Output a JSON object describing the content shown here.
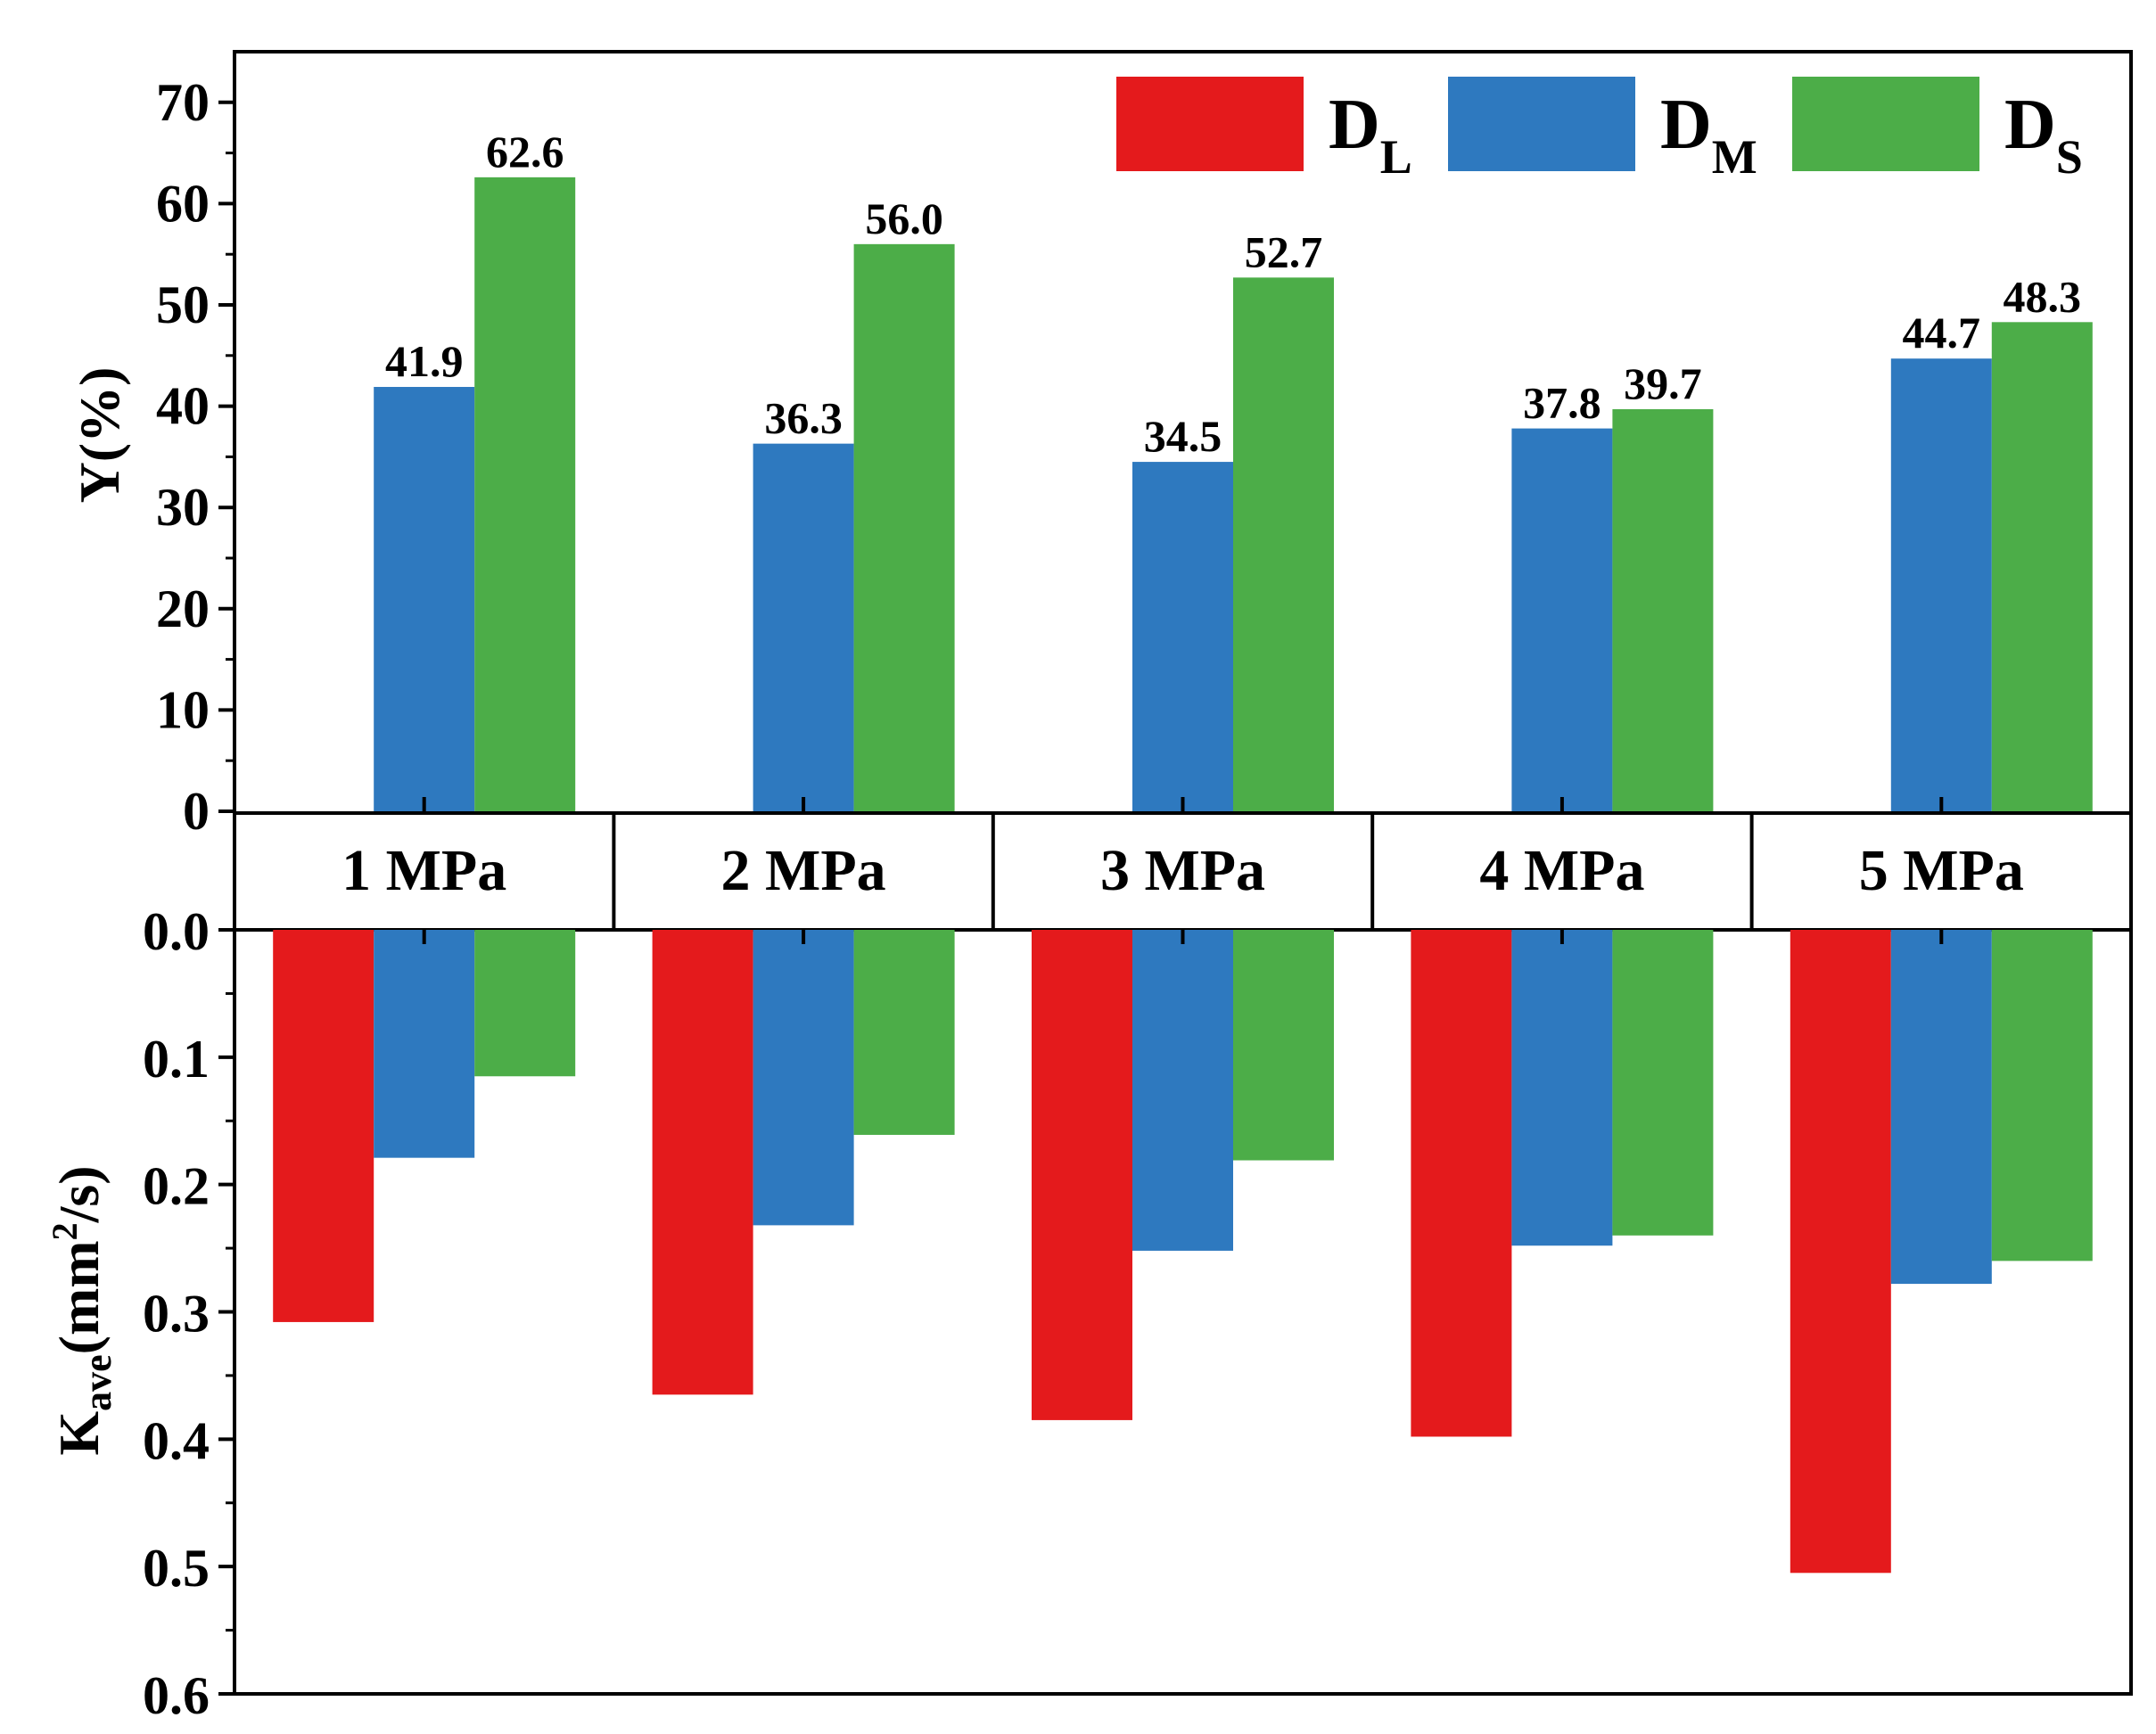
{
  "chart_data": [
    {
      "type": "bar",
      "panel": "top",
      "categories": [
        "1 MPa",
        "2 MPa",
        "3 MPa",
        "4 MPa",
        "5 MPa"
      ],
      "series": [
        {
          "name": "D_M",
          "values": [
            41.9,
            36.3,
            34.5,
            37.8,
            44.7
          ],
          "data_labels": [
            "41.9",
            "36.3",
            "34.5",
            "37.8",
            "44.7"
          ]
        },
        {
          "name": "D_S",
          "values": [
            62.6,
            56.0,
            52.7,
            39.7,
            48.3
          ],
          "data_labels": [
            "62.6",
            "56.0",
            "52.7",
            "39.7",
            "48.3"
          ]
        }
      ],
      "ylabel": "Y(%)",
      "ylim": [
        0,
        75
      ],
      "yticks": [
        0,
        10,
        20,
        30,
        40,
        50,
        60,
        70
      ],
      "ytick_labels": [
        "0",
        "10",
        "20",
        "30",
        "40",
        "50",
        "60",
        "70"
      ]
    },
    {
      "type": "bar",
      "panel": "bottom",
      "orientation": "downward",
      "categories": [
        "1 MPa",
        "2 MPa",
        "3 MPa",
        "4 MPa",
        "5 MPa"
      ],
      "series": [
        {
          "name": "D_L",
          "values": [
            0.308,
            0.365,
            0.385,
            0.398,
            0.505
          ]
        },
        {
          "name": "D_M",
          "values": [
            0.179,
            0.232,
            0.252,
            0.248,
            0.278
          ]
        },
        {
          "name": "D_S",
          "values": [
            0.115,
            0.161,
            0.181,
            0.24,
            0.26
          ]
        }
      ],
      "ylabel": {
        "main": "K",
        "sub": "ave",
        "units_open": "(mm",
        "sup": "2",
        "units_close": "/s)"
      },
      "ylim": [
        0,
        0.6
      ],
      "yticks": [
        0.0,
        0.1,
        0.2,
        0.3,
        0.4,
        0.5,
        0.6
      ],
      "ytick_labels": [
        "0.0",
        "0.1",
        "0.2",
        "0.3",
        "0.4",
        "0.5",
        "0.6"
      ]
    }
  ],
  "legend": {
    "placement": "top-right",
    "items": [
      {
        "key": "D_L",
        "main": "D",
        "sub": "L",
        "color": "#e41a1c"
      },
      {
        "key": "D_M",
        "main": "D",
        "sub": "M",
        "color": "#2e79bf"
      },
      {
        "key": "D_S",
        "main": "D",
        "sub": "S",
        "color": "#4cad48"
      }
    ]
  },
  "colors": {
    "D_L": "#e41a1c",
    "D_M": "#2e79bf",
    "D_S": "#4cad48"
  }
}
